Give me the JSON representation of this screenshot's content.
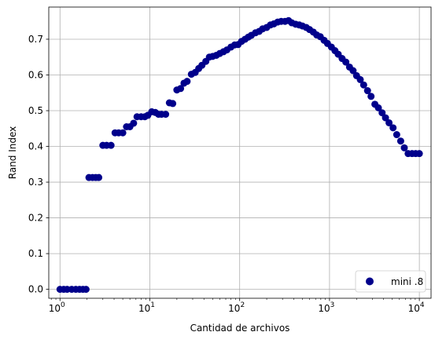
{
  "chart_data": {
    "type": "scatter",
    "xlabel": "Cantidad de archivos",
    "ylabel": "Rand Index",
    "xscale": "log",
    "xlim": [
      0.75,
      13500
    ],
    "ylim": [
      -0.025,
      0.79
    ],
    "grid": true,
    "legend_position": "lower-right",
    "x_ticks": [
      {
        "value": 1,
        "base": "10",
        "exp": "0"
      },
      {
        "value": 10,
        "base": "10",
        "exp": "1"
      },
      {
        "value": 100,
        "base": "10",
        "exp": "2"
      },
      {
        "value": 1000,
        "base": "10",
        "exp": "3"
      },
      {
        "value": 10000,
        "base": "10",
        "exp": "4"
      }
    ],
    "y_ticks": [
      "0.0",
      "0.1",
      "0.2",
      "0.3",
      "0.4",
      "0.5",
      "0.6",
      "0.7"
    ],
    "series": [
      {
        "name": "mini .8",
        "color": "#00008b",
        "x": [
          1,
          1.1,
          1.2,
          1.35,
          1.5,
          1.65,
          1.8,
          1.95,
          2.1,
          2.3,
          2.5,
          2.7,
          3.0,
          3.3,
          3.7,
          4.1,
          4.5,
          5.0,
          5.5,
          6.0,
          6.6,
          7.2,
          8.0,
          8.8,
          9.5,
          10.5,
          11.5,
          12.5,
          13.5,
          15,
          16.5,
          18,
          20,
          22,
          24,
          26,
          29,
          32,
          35,
          38,
          42,
          46,
          50,
          55,
          60,
          66,
          72,
          80,
          88,
          96,
          105,
          115,
          125,
          135,
          150,
          165,
          180,
          200,
          220,
          240,
          265,
          290,
          320,
          350,
          380,
          420,
          460,
          500,
          550,
          600,
          660,
          720,
          790,
          870,
          950,
          1050,
          1150,
          1250,
          1380,
          1520,
          1670,
          1830,
          2000,
          2200,
          2400,
          2650,
          2900,
          3200,
          3500,
          3850,
          4200,
          4600,
          5100,
          5600,
          6200,
          6800,
          7500,
          8300,
          9100,
          10000
        ],
        "y": [
          0.0,
          0.0,
          0.0,
          0.0,
          0.0,
          0.0,
          0.0,
          0.0,
          0.313,
          0.313,
          0.313,
          0.313,
          0.403,
          0.403,
          0.403,
          0.438,
          0.438,
          0.438,
          0.455,
          0.455,
          0.465,
          0.483,
          0.483,
          0.483,
          0.487,
          0.497,
          0.495,
          0.49,
          0.49,
          0.49,
          0.522,
          0.52,
          0.558,
          0.562,
          0.577,
          0.582,
          0.602,
          0.607,
          0.618,
          0.627,
          0.638,
          0.65,
          0.652,
          0.655,
          0.66,
          0.665,
          0.67,
          0.678,
          0.684,
          0.685,
          0.694,
          0.7,
          0.706,
          0.711,
          0.718,
          0.722,
          0.729,
          0.733,
          0.74,
          0.743,
          0.748,
          0.75,
          0.75,
          0.752,
          0.746,
          0.742,
          0.74,
          0.737,
          0.733,
          0.727,
          0.72,
          0.712,
          0.707,
          0.697,
          0.688,
          0.678,
          0.668,
          0.658,
          0.646,
          0.636,
          0.622,
          0.612,
          0.598,
          0.587,
          0.572,
          0.556,
          0.54,
          0.518,
          0.508,
          0.494,
          0.48,
          0.466,
          0.452,
          0.433,
          0.415,
          0.396,
          0.38,
          0.38,
          0.38,
          0.38
        ]
      }
    ]
  }
}
